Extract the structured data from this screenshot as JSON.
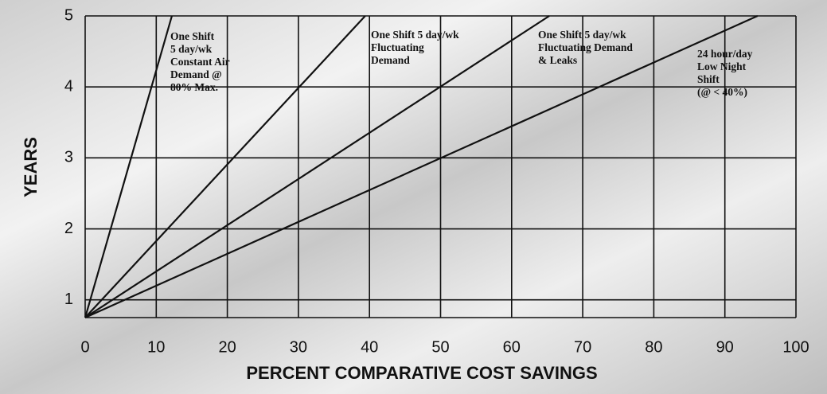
{
  "chart_data": {
    "type": "line",
    "xlabel": "PERCENT COMPARATIVE COST SAVINGS",
    "ylabel": "YEARS",
    "xlim": [
      0,
      100
    ],
    "xticks": [
      0,
      10,
      20,
      30,
      40,
      50,
      60,
      70,
      80,
      90,
      100
    ],
    "ylim": [
      0.75,
      5
    ],
    "yticks": [
      1,
      2,
      3,
      4,
      5
    ],
    "grid": true,
    "series": [
      {
        "color": "#111111",
        "x": [
          0,
          12.2
        ],
        "values": [
          0.75,
          5
        ]
      },
      {
        "color": "#111111",
        "x": [
          0,
          39.4
        ],
        "values": [
          0.75,
          5
        ]
      },
      {
        "color": "#111111",
        "x": [
          0,
          65.3
        ],
        "values": [
          0.75,
          5
        ]
      },
      {
        "color": "#111111",
        "x": [
          0,
          94.6
        ],
        "values": [
          0.75,
          5
        ]
      }
    ],
    "annotations": [
      [
        "One Shift",
        "5 day/wk",
        "Constant Air",
        "Demand @",
        "80% Max."
      ],
      [
        "One Shift 5 day/wk",
        "Fluctuating",
        "Demand"
      ],
      [
        "One Shift 5 day/wk",
        "Fluctuating Demand",
        "& Leaks"
      ],
      [
        "24 hour/day",
        "Low Night",
        "Shift",
        "(@ < 40%)"
      ]
    ]
  }
}
